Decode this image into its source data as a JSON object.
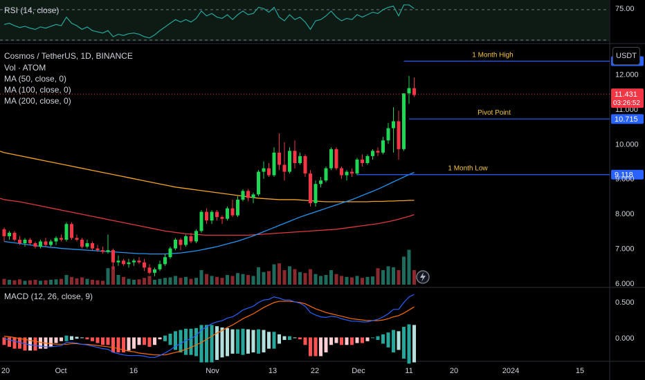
{
  "symbol": {
    "title": "Cosmos / TetherUS, 1D, BINANCE",
    "volume_label": "Vol · ATOM",
    "ma_labels": [
      "MA (50, close, 0)",
      "MA (100, close, 0)",
      "MA (200, close, 0)"
    ]
  },
  "rsi": {
    "label": "RSI (14, close)",
    "level_label": "75.00"
  },
  "macd": {
    "label": "MACD (12, 26, close, 9)",
    "ticks": [
      "0.500",
      "0.000"
    ]
  },
  "currency_button": "USDT",
  "price_axis": {
    "ticks": [
      "12.000",
      "11.000",
      "10.000",
      "9.000",
      "8.000",
      "7.000",
      "6.000"
    ],
    "current_price": "11.431",
    "countdown": "03:26:52"
  },
  "levels": [
    {
      "name": "1 Month High",
      "value": "12.374",
      "color": "#2962ff",
      "label_color": "#f5c542"
    },
    {
      "name": "Pivot Point",
      "value": "10.715",
      "color": "#2962ff",
      "label_color": "#f5c542"
    },
    {
      "name": "1 Month Low",
      "value": "9.118",
      "color": "#2962ff",
      "label_color": "#f5c542"
    }
  ],
  "time_axis": {
    "labels": [
      "20",
      "Oct",
      "16",
      "Nov",
      "13",
      "22",
      "Dec",
      "11",
      "20",
      "2024",
      "15"
    ]
  },
  "colors": {
    "up": "#26a69a",
    "up_candle": "#1fd655",
    "down": "#f23645",
    "ma50": "#2196f3",
    "ma100": "#e0393e",
    "ma200": "#f5a623"
  },
  "chart_data": {
    "type": "candlestick",
    "price_range": [
      6.0,
      12.9
    ],
    "candles": [
      [
        7.55,
        7.6,
        7.2,
        7.35
      ],
      [
        7.35,
        7.5,
        7.25,
        7.45
      ],
      [
        7.45,
        7.5,
        7.2,
        7.25
      ],
      [
        7.25,
        7.35,
        7.1,
        7.15
      ],
      [
        7.15,
        7.3,
        7.05,
        7.25
      ],
      [
        7.25,
        7.3,
        7.1,
        7.15
      ],
      [
        7.15,
        7.2,
        7.0,
        7.05
      ],
      [
        7.05,
        7.25,
        7.0,
        7.2
      ],
      [
        7.2,
        7.3,
        7.05,
        7.1
      ],
      [
        7.1,
        7.25,
        7.05,
        7.2
      ],
      [
        7.2,
        7.35,
        7.1,
        7.3
      ],
      [
        7.3,
        7.4,
        7.2,
        7.25
      ],
      [
        7.25,
        7.75,
        7.2,
        7.7
      ],
      [
        7.7,
        7.75,
        7.25,
        7.3
      ],
      [
        7.3,
        7.4,
        7.2,
        7.25
      ],
      [
        7.25,
        7.3,
        7.0,
        7.05
      ],
      [
        7.05,
        7.25,
        7.0,
        7.15
      ],
      [
        7.15,
        7.2,
        6.95,
        7.0
      ],
      [
        7.0,
        7.1,
        6.9,
        6.95
      ],
      [
        6.95,
        7.05,
        6.85,
        6.9
      ],
      [
        6.9,
        7.4,
        6.85,
        6.95
      ],
      [
        6.95,
        7.0,
        6.4,
        6.6
      ],
      [
        6.6,
        6.8,
        6.5,
        6.65
      ],
      [
        6.65,
        6.7,
        6.5,
        6.55
      ],
      [
        6.55,
        6.7,
        6.45,
        6.6
      ],
      [
        6.6,
        6.7,
        6.5,
        6.65
      ],
      [
        6.65,
        6.75,
        6.55,
        6.6
      ],
      [
        6.6,
        6.7,
        6.35,
        6.45
      ],
      [
        6.45,
        6.55,
        6.25,
        6.3
      ],
      [
        6.3,
        6.45,
        6.2,
        6.4
      ],
      [
        6.4,
        6.65,
        6.35,
        6.55
      ],
      [
        6.55,
        6.85,
        6.5,
        6.75
      ],
      [
        6.75,
        7.05,
        6.7,
        7.0
      ],
      [
        7.0,
        7.3,
        6.95,
        7.25
      ],
      [
        7.25,
        7.3,
        6.95,
        7.1
      ],
      [
        7.1,
        7.4,
        7.05,
        7.35
      ],
      [
        7.35,
        7.45,
        7.15,
        7.2
      ],
      [
        7.2,
        7.55,
        7.15,
        7.5
      ],
      [
        7.5,
        8.1,
        7.45,
        8.05
      ],
      [
        8.05,
        8.15,
        7.7,
        7.8
      ],
      [
        7.8,
        8.1,
        7.7,
        8.05
      ],
      [
        8.05,
        8.1,
        7.8,
        7.9
      ],
      [
        7.9,
        7.95,
        7.7,
        7.85
      ],
      [
        7.85,
        8.2,
        7.8,
        8.15
      ],
      [
        8.15,
        8.4,
        7.9,
        7.95
      ],
      [
        7.95,
        8.5,
        7.9,
        8.4
      ],
      [
        8.4,
        8.7,
        8.35,
        8.65
      ],
      [
        8.65,
        8.7,
        8.35,
        8.45
      ],
      [
        8.45,
        8.6,
        8.3,
        8.55
      ],
      [
        8.55,
        9.25,
        8.5,
        9.2
      ],
      [
        9.2,
        9.5,
        9.0,
        9.3
      ],
      [
        9.3,
        9.45,
        9.05,
        9.1
      ],
      [
        9.1,
        9.9,
        9.05,
        9.75
      ],
      [
        9.75,
        10.3,
        9.25,
        9.4
      ],
      [
        9.4,
        10.05,
        8.95,
        9.2
      ],
      [
        9.2,
        9.9,
        9.15,
        9.8
      ],
      [
        9.8,
        10.1,
        9.3,
        9.45
      ],
      [
        9.45,
        9.75,
        9.4,
        9.65
      ],
      [
        9.65,
        9.7,
        9.05,
        9.15
      ],
      [
        9.15,
        9.25,
        8.2,
        8.3
      ],
      [
        8.3,
        8.95,
        8.2,
        8.85
      ],
      [
        8.85,
        9.05,
        8.75,
        8.95
      ],
      [
        8.95,
        9.35,
        8.9,
        9.3
      ],
      [
        9.3,
        9.9,
        9.25,
        9.85
      ],
      [
        9.85,
        9.9,
        9.25,
        9.3
      ],
      [
        9.3,
        9.35,
        9.0,
        9.1
      ],
      [
        9.1,
        9.25,
        8.95,
        9.2
      ],
      [
        9.2,
        9.3,
        9.05,
        9.15
      ],
      [
        9.15,
        9.6,
        9.1,
        9.55
      ],
      [
        9.55,
        9.7,
        9.35,
        9.45
      ],
      [
        9.45,
        9.7,
        9.4,
        9.65
      ],
      [
        9.65,
        9.85,
        9.55,
        9.8
      ],
      [
        9.8,
        9.9,
        9.65,
        9.75
      ],
      [
        9.75,
        10.2,
        9.7,
        10.1
      ],
      [
        10.1,
        10.6,
        10.0,
        10.45
      ],
      [
        10.45,
        11.05,
        9.75,
        10.65
      ],
      [
        10.65,
        10.95,
        9.55,
        9.85
      ],
      [
        9.85,
        11.45,
        9.8,
        11.45
      ],
      [
        11.45,
        11.95,
        11.15,
        11.6
      ],
      [
        11.6,
        11.9,
        11.35,
        11.4
      ]
    ],
    "volume_scale_max": 100,
    "volume": [
      12,
      10,
      9,
      11,
      8,
      9,
      10,
      8,
      9,
      10,
      11,
      12,
      20,
      16,
      13,
      15,
      12,
      10,
      9,
      8,
      34,
      38,
      20,
      16,
      12,
      10,
      11,
      14,
      18,
      10,
      12,
      14,
      15,
      18,
      14,
      16,
      12,
      14,
      30,
      22,
      18,
      16,
      14,
      20,
      18,
      24,
      22,
      20,
      18,
      36,
      26,
      28,
      42,
      44,
      30,
      38,
      32,
      26,
      24,
      32,
      22,
      18,
      20,
      30,
      22,
      18,
      16,
      15,
      18,
      14,
      16,
      17,
      34,
      30,
      38,
      36,
      30,
      58,
      72,
      30
    ],
    "ma50": [
      7.2,
      7.18,
      7.16,
      7.14,
      7.12,
      7.1,
      7.08,
      7.06,
      7.05,
      7.03,
      7.02,
      7.0,
      6.99,
      6.98,
      6.97,
      6.96,
      6.95,
      6.94,
      6.93,
      6.92,
      6.91,
      6.9,
      6.89,
      6.88,
      6.87,
      6.86,
      6.85,
      6.85,
      6.84,
      6.84,
      6.84,
      6.84,
      6.85,
      6.86,
      6.87,
      6.89,
      6.91,
      6.93,
      6.96,
      6.99,
      7.02,
      7.05,
      7.09,
      7.13,
      7.17,
      7.21,
      7.26,
      7.31,
      7.36,
      7.42,
      7.48,
      7.54,
      7.6,
      7.66,
      7.72,
      7.78,
      7.84,
      7.9,
      7.95,
      8.0,
      8.05,
      8.1,
      8.15,
      8.2,
      8.25,
      8.3,
      8.35,
      8.4,
      8.46,
      8.52,
      8.58,
      8.64,
      8.7,
      8.77,
      8.84,
      8.91,
      8.98,
      9.05,
      9.12,
      9.18
    ],
    "ma100": [
      8.4,
      8.38,
      8.36,
      8.34,
      8.31,
      8.28,
      8.25,
      8.22,
      8.19,
      8.16,
      8.13,
      8.1,
      8.07,
      8.04,
      8.01,
      7.98,
      7.95,
      7.92,
      7.89,
      7.86,
      7.83,
      7.8,
      7.77,
      7.74,
      7.71,
      7.68,
      7.65,
      7.62,
      7.59,
      7.56,
      7.53,
      7.5,
      7.48,
      7.46,
      7.44,
      7.42,
      7.41,
      7.4,
      7.39,
      7.38,
      7.38,
      7.38,
      7.38,
      7.38,
      7.38,
      7.38,
      7.38,
      7.38,
      7.39,
      7.4,
      7.41,
      7.42,
      7.43,
      7.44,
      7.45,
      7.46,
      7.47,
      7.48,
      7.49,
      7.5,
      7.51,
      7.52,
      7.53,
      7.54,
      7.55,
      7.57,
      7.59,
      7.61,
      7.63,
      7.65,
      7.67,
      7.69,
      7.71,
      7.74,
      7.77,
      7.8,
      7.84,
      7.88,
      7.92,
      7.97
    ],
    "ma200": [
      9.75,
      9.72,
      9.69,
      9.66,
      9.63,
      9.6,
      9.57,
      9.54,
      9.51,
      9.48,
      9.45,
      9.42,
      9.39,
      9.36,
      9.33,
      9.3,
      9.27,
      9.24,
      9.21,
      9.18,
      9.15,
      9.12,
      9.09,
      9.06,
      9.03,
      9.0,
      8.97,
      8.94,
      8.91,
      8.88,
      8.85,
      8.82,
      8.79,
      8.76,
      8.74,
      8.72,
      8.7,
      8.68,
      8.66,
      8.64,
      8.62,
      8.6,
      8.58,
      8.56,
      8.54,
      8.52,
      8.5,
      8.48,
      8.46,
      8.44,
      8.43,
      8.42,
      8.41,
      8.4,
      8.4,
      8.4,
      8.4,
      8.39,
      8.38,
      8.37,
      8.36,
      8.35,
      8.34,
      8.34,
      8.34,
      8.34,
      8.34,
      8.34,
      8.34,
      8.34,
      8.34,
      8.35,
      8.35,
      8.35,
      8.36,
      8.36,
      8.37,
      8.37,
      8.38,
      8.38
    ],
    "rsi_range": [
      20,
      90
    ],
    "rsi": [
      50,
      52,
      48,
      45,
      47,
      44,
      42,
      46,
      44,
      47,
      50,
      48,
      62,
      52,
      48,
      42,
      46,
      40,
      38,
      36,
      40,
      30,
      34,
      32,
      35,
      36,
      34,
      30,
      28,
      33,
      40,
      46,
      52,
      58,
      54,
      58,
      54,
      60,
      72,
      64,
      68,
      62,
      60,
      66,
      58,
      66,
      72,
      66,
      68,
      78,
      76,
      70,
      78,
      62,
      56,
      66,
      58,
      62,
      54,
      42,
      56,
      58,
      64,
      72,
      62,
      56,
      60,
      58,
      66,
      62,
      66,
      70,
      68,
      74,
      78,
      80,
      64,
      82,
      82,
      76
    ],
    "macd_range": [
      -0.35,
      0.78
    ],
    "macd": [
      -0.02,
      -0.04,
      -0.06,
      -0.08,
      -0.1,
      -0.12,
      -0.13,
      -0.14,
      -0.15,
      -0.15,
      -0.14,
      -0.13,
      -0.08,
      -0.08,
      -0.09,
      -0.11,
      -0.12,
      -0.14,
      -0.16,
      -0.18,
      -0.19,
      -0.24,
      -0.26,
      -0.28,
      -0.29,
      -0.29,
      -0.29,
      -0.3,
      -0.32,
      -0.32,
      -0.29,
      -0.25,
      -0.2,
      -0.14,
      -0.1,
      -0.05,
      -0.02,
      0.03,
      0.12,
      0.17,
      0.22,
      0.25,
      0.27,
      0.31,
      0.33,
      0.38,
      0.44,
      0.47,
      0.5,
      0.56,
      0.6,
      0.61,
      0.65,
      0.63,
      0.6,
      0.6,
      0.57,
      0.55,
      0.5,
      0.4,
      0.36,
      0.33,
      0.32,
      0.34,
      0.33,
      0.3,
      0.28,
      0.26,
      0.26,
      0.25,
      0.25,
      0.27,
      0.29,
      0.33,
      0.38,
      0.45,
      0.45,
      0.56,
      0.65,
      0.69
    ],
    "signal": [
      0.02,
      0.01,
      0.0,
      -0.02,
      -0.03,
      -0.05,
      -0.06,
      -0.08,
      -0.09,
      -0.1,
      -0.11,
      -0.11,
      -0.11,
      -0.1,
      -0.1,
      -0.11,
      -0.11,
      -0.12,
      -0.13,
      -0.14,
      -0.15,
      -0.16,
      -0.18,
      -0.2,
      -0.22,
      -0.23,
      -0.25,
      -0.26,
      -0.27,
      -0.28,
      -0.28,
      -0.28,
      -0.26,
      -0.24,
      -0.22,
      -0.19,
      -0.16,
      -0.12,
      -0.08,
      -0.03,
      0.02,
      0.07,
      0.11,
      0.16,
      0.2,
      0.25,
      0.3,
      0.34,
      0.38,
      0.43,
      0.48,
      0.52,
      0.56,
      0.58,
      0.58,
      0.58,
      0.57,
      0.56,
      0.54,
      0.5,
      0.46,
      0.43,
      0.4,
      0.38,
      0.36,
      0.34,
      0.32,
      0.3,
      0.29,
      0.28,
      0.27,
      0.27,
      0.27,
      0.28,
      0.3,
      0.33,
      0.35,
      0.39,
      0.44,
      0.49
    ]
  }
}
